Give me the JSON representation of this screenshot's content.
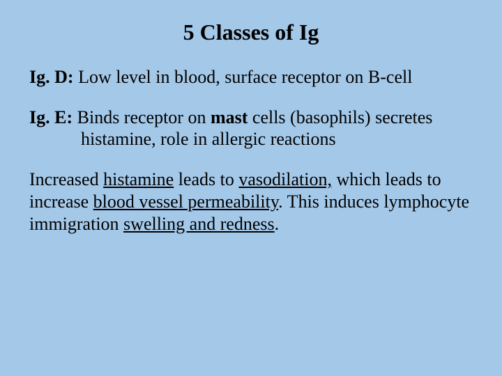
{
  "background_color": "#a4c8e8",
  "text_color": "#000000",
  "font_family": "Times New Roman",
  "title": "5 Classes of Ig",
  "title_fontsize": 32,
  "body_fontsize": 26,
  "igd": {
    "label": "Ig. D:",
    "text": " Low level in blood, surface receptor on B-cell"
  },
  "ige": {
    "label": "Ig. E:",
    "pre": " Binds receptor on ",
    "bold": "mast",
    "post": " cells (basophils) secretes histamine, role in allergic reactions"
  },
  "para": {
    "t1": "Increased ",
    "u1": "histamine",
    "t2": " leads to ",
    "u2": "vasodilation,",
    "t3": " which leads to increase ",
    "u3": "blood vessel permeability",
    "t4": ".  This induces lymphocyte immigration ",
    "u4": "swelling and redness",
    "t5": "."
  }
}
